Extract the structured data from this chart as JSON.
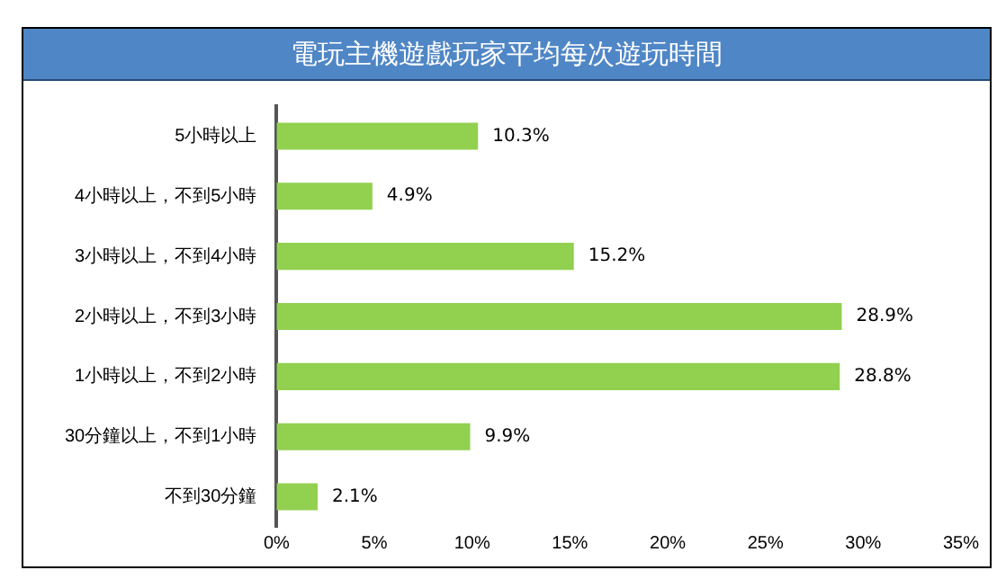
{
  "chart_data": {
    "type": "bar",
    "orientation": "horizontal",
    "title": "電玩主機遊戲玩家平均每次遊玩時間",
    "categories": [
      "5小時以上",
      "4小時以上，不到5小時",
      "3小時以上，不到4小時",
      "2小時以上，不到3小時",
      "1小時以上，不到2小時",
      "30分鐘以上，不到1小時",
      "不到30分鐘"
    ],
    "values": [
      10.3,
      4.9,
      15.2,
      28.9,
      28.8,
      9.9,
      2.1
    ],
    "value_labels": [
      "10.3%",
      "4.9%",
      "15.2%",
      "28.9%",
      "28.8%",
      "9.9%",
      "2.1%"
    ],
    "color": "#92d050",
    "xlim": [
      0,
      35
    ],
    "xticks": [
      {
        "value": 0,
        "label": "0%"
      },
      {
        "value": 5,
        "label": "5%"
      },
      {
        "value": 10,
        "label": "10%"
      },
      {
        "value": 15,
        "label": "15%"
      },
      {
        "value": 20,
        "label": "20%"
      },
      {
        "value": 25,
        "label": "25%"
      },
      {
        "value": 30,
        "label": "30%"
      },
      {
        "value": 35,
        "label": "35%"
      }
    ],
    "grid": false,
    "legend": false
  }
}
